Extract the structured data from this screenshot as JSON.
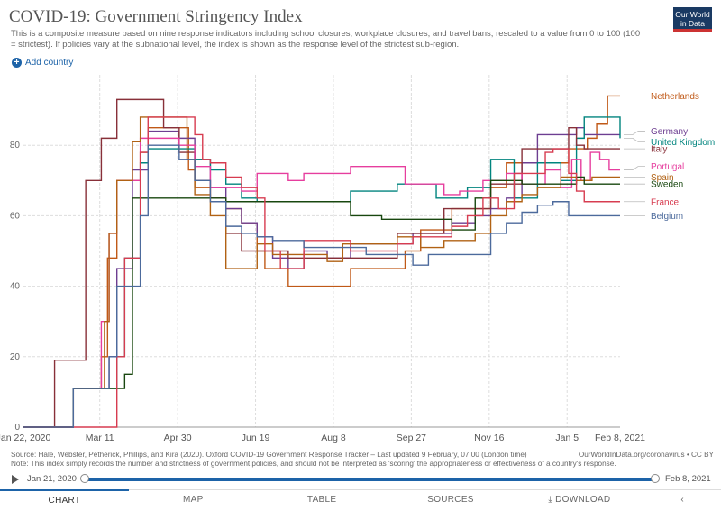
{
  "header": {
    "title": "COVID-19: Government Stringency Index",
    "subtitle": "This is a composite measure based on nine response indicators including school closures, workplace closures, and travel bans, rescaled to a value from 0 to 100 (100 = strictest). If policies vary at the subnational level, the index is shown as the response level of the strictest sub-region.",
    "logo_line1": "Our World",
    "logo_line2": "in Data"
  },
  "controls": {
    "add_country": "Add country"
  },
  "footer": {
    "source": "Source: Hale, Webster, Petherick, Phillips, and Kira (2020). Oxford COVID-19 Government Response Tracker – Last updated 9 February, 07:00 (London time)",
    "note": "Note: This index simply records the number and strictness of government policies, and should not be interpreted as 'scoring' the appropriateness or effectiveness of a country's response.",
    "link": "OurWorldInData.org/coronavirus • CC BY"
  },
  "timeline": {
    "start": "Jan 21, 2020",
    "end": "Feb 8, 2021"
  },
  "tabs": [
    "CHART",
    "MAP",
    "TABLE",
    "SOURCES",
    "DOWNLOAD"
  ],
  "colors": {
    "accent": "#1d63a8",
    "grid": "#dddddd"
  },
  "chart_data": {
    "type": "line",
    "title": "COVID-19: Government Stringency Index",
    "ylim": [
      0,
      100
    ],
    "yticks": [
      0,
      20,
      40,
      60,
      80
    ],
    "xlim": [
      "2020-01-22",
      "2021-02-08"
    ],
    "xticks": [
      "Jan 22, 2020",
      "Mar 11",
      "Apr 30",
      "Jun 19",
      "Aug 8",
      "Sep 27",
      "Nov 16",
      "Jan 5",
      "Feb 8, 2021"
    ],
    "xtick_days": [
      0,
      49,
      99,
      149,
      199,
      249,
      299,
      349,
      383
    ],
    "grid": true,
    "legend": "right",
    "series": [
      {
        "name": "Netherlands",
        "color": "#c05917",
        "x": [
          0,
          32,
          44,
          50,
          54,
          60,
          75,
          80,
          100,
          106,
          110,
          120,
          130,
          140,
          150,
          155,
          165,
          170,
          190,
          210,
          232,
          245,
          255,
          270,
          275,
          290,
          300,
          310,
          330,
          350,
          355,
          362,
          368,
          375,
          383
        ],
        "y": [
          0,
          11,
          11,
          20,
          48,
          70,
          78,
          85,
          85,
          73,
          68,
          65,
          62,
          58,
          50,
          45,
          45,
          40,
          40,
          45,
          45,
          50,
          56,
          56,
          62,
          62,
          68,
          75,
          75,
          79,
          79,
          82,
          86,
          94,
          94
        ]
      },
      {
        "name": "Germany",
        "color": "#6d3e91",
        "x": [
          0,
          32,
          50,
          55,
          60,
          70,
          80,
          100,
          110,
          120,
          130,
          140,
          150,
          160,
          170,
          180,
          195,
          210,
          230,
          250,
          260,
          275,
          290,
          300,
          310,
          320,
          330,
          345,
          355,
          360,
          383
        ],
        "y": [
          0,
          11,
          11,
          20,
          45,
          73,
          84,
          82,
          76,
          68,
          62,
          58,
          54,
          48,
          45,
          50,
          48,
          52,
          52,
          55,
          55,
          58,
          60,
          62,
          65,
          75,
          83,
          83,
          85,
          83,
          83
        ]
      },
      {
        "name": "United Kingdom",
        "color": "#00847e",
        "x": [
          0,
          32,
          55,
          60,
          65,
          75,
          80,
          100,
          110,
          120,
          130,
          140,
          150,
          170,
          190,
          210,
          230,
          240,
          255,
          265,
          275,
          285,
          300,
          315,
          330,
          345,
          355,
          360,
          383
        ],
        "y": [
          0,
          11,
          11,
          20,
          48,
          75,
          79,
          79,
          76,
          73,
          69,
          65,
          64,
          64,
          64,
          67,
          67,
          69,
          69,
          65,
          65,
          68,
          76,
          65,
          75,
          70,
          82,
          88,
          82
        ]
      },
      {
        "name": "Italy",
        "color": "#883039",
        "x": [
          0,
          20,
          32,
          40,
          45,
          50,
          55,
          60,
          70,
          80,
          90,
          100,
          110,
          120,
          130,
          140,
          150,
          160,
          170,
          180,
          200,
          220,
          240,
          250,
          270,
          280,
          300,
          320,
          340,
          350,
          355,
          360,
          383
        ],
        "y": [
          0,
          19,
          19,
          70,
          70,
          82,
          82,
          93,
          93,
          93,
          85,
          78,
          70,
          65,
          55,
          50,
          50,
          50,
          48,
          48,
          48,
          48,
          55,
          55,
          62,
          62,
          69,
          79,
          79,
          85,
          80,
          79,
          79
        ]
      },
      {
        "name": "Portugal",
        "color": "#e63e9e",
        "x": [
          0,
          32,
          45,
          50,
          55,
          60,
          75,
          80,
          100,
          110,
          120,
          140,
          150,
          160,
          170,
          180,
          190,
          210,
          230,
          245,
          260,
          270,
          280,
          295,
          310,
          320,
          335,
          345,
          352,
          358,
          364,
          370,
          376,
          383
        ],
        "y": [
          0,
          11,
          11,
          30,
          55,
          70,
          82,
          82,
          80,
          74,
          68,
          67,
          72,
          72,
          70,
          72,
          72,
          74,
          74,
          69,
          69,
          66,
          67,
          70,
          72,
          69,
          73,
          68,
          76,
          70,
          78,
          76,
          73,
          73
        ]
      },
      {
        "name": "Spain",
        "color": "#b16214",
        "x": [
          0,
          32,
          48,
          52,
          55,
          60,
          70,
          75,
          100,
          105,
          110,
          120,
          130,
          140,
          150,
          155,
          160,
          175,
          195,
          205,
          220,
          240,
          255,
          270,
          290,
          300,
          310,
          320,
          330,
          345,
          355,
          365,
          372,
          383
        ],
        "y": [
          0,
          11,
          11,
          30,
          55,
          70,
          81,
          88,
          88,
          76,
          66,
          60,
          45,
          45,
          52,
          52,
          49,
          49,
          47,
          52,
          52,
          54,
          51,
          53,
          55,
          60,
          64,
          66,
          68,
          71,
          70,
          71,
          71,
          71
        ]
      },
      {
        "name": "Sweden",
        "color": "#18470f",
        "x": [
          0,
          32,
          60,
          65,
          70,
          80,
          100,
          110,
          130,
          150,
          170,
          190,
          210,
          230,
          250,
          265,
          275,
          285,
          290,
          300,
          320,
          340,
          355,
          360,
          383
        ],
        "y": [
          0,
          11,
          11,
          15,
          65,
          65,
          65,
          65,
          64,
          64,
          64,
          64,
          60,
          59,
          59,
          59,
          56,
          56,
          65,
          70,
          69,
          69,
          71,
          69,
          69
        ]
      },
      {
        "name": "France",
        "color": "#d73c50",
        "x": [
          0,
          30,
          55,
          60,
          65,
          75,
          80,
          100,
          110,
          115,
          120,
          130,
          140,
          150,
          155,
          165,
          175,
          180,
          195,
          210,
          225,
          240,
          250,
          260,
          275,
          285,
          295,
          305,
          315,
          325,
          335,
          340,
          350,
          355,
          360,
          383
        ],
        "y": [
          0,
          0,
          0,
          20,
          48,
          78,
          88,
          88,
          83,
          76,
          75,
          71,
          68,
          65,
          50,
          45,
          45,
          53,
          53,
          50,
          50,
          52,
          54,
          54,
          57,
          60,
          65,
          62,
          72,
          72,
          78,
          79,
          72,
          67,
          64,
          64
        ]
      },
      {
        "name": "Belgium",
        "color": "#4c6a9c",
        "x": [
          0,
          32,
          50,
          55,
          60,
          75,
          80,
          100,
          110,
          120,
          130,
          140,
          150,
          160,
          180,
          200,
          220,
          240,
          250,
          260,
          280,
          300,
          310,
          320,
          330,
          340,
          350,
          383
        ],
        "y": [
          0,
          11,
          11,
          20,
          40,
          60,
          80,
          76,
          70,
          64,
          57,
          55,
          54,
          53,
          51,
          51,
          49,
          49,
          46,
          49,
          49,
          55,
          58,
          61,
          63,
          64,
          60,
          60
        ]
      }
    ]
  }
}
